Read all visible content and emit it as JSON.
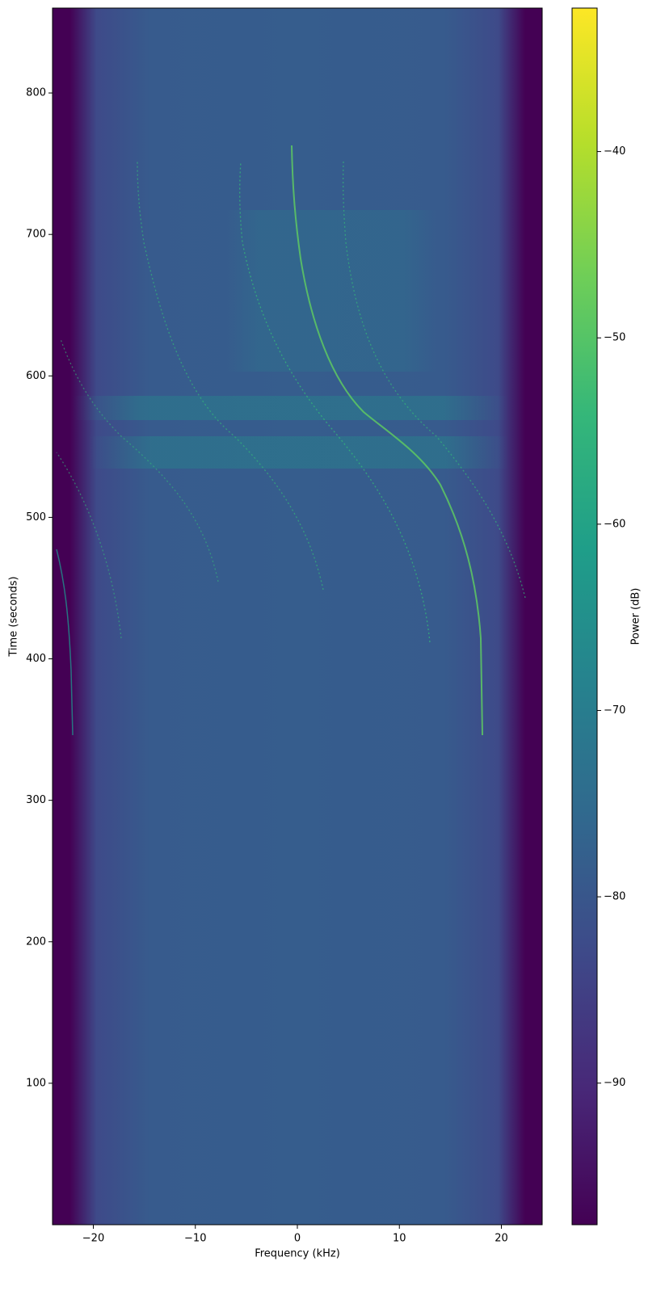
{
  "chart_data": {
    "type": "spectrogram",
    "xlabel": "Frequency (kHz)",
    "ylabel": "Time (seconds)",
    "xlim": [
      -24,
      24
    ],
    "xticks": [
      {
        "value": -20,
        "label": "−20"
      },
      {
        "value": -10,
        "label": "−10"
      },
      0,
      10,
      20
    ],
    "ylim": [
      0,
      860
    ],
    "yticks": [
      100,
      200,
      300,
      400,
      500,
      600,
      700,
      800
    ],
    "colormap": "viridis",
    "colorbar": {
      "label": "Power (dB)",
      "lim": [
        -97.6,
        -32.3
      ],
      "ticks": [
        {
          "value": -90,
          "label": "−90"
        },
        {
          "value": -80,
          "label": "−80"
        },
        {
          "value": -70,
          "label": "−70"
        },
        {
          "value": -60,
          "label": "−60"
        },
        {
          "value": -50,
          "label": "−50"
        },
        {
          "value": -40,
          "label": "−40"
        }
      ]
    }
  }
}
